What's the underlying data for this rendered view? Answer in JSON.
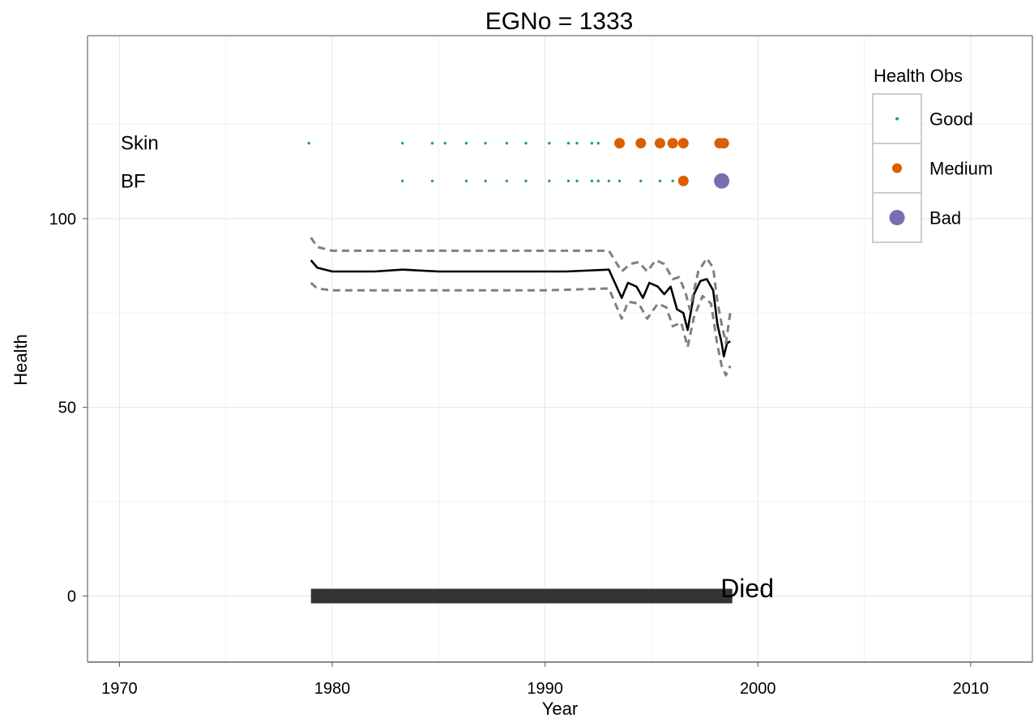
{
  "chart_data": {
    "type": "line",
    "title": "EGNo = 1333",
    "xlabel": "Year",
    "ylabel": "Health",
    "xlim": [
      1968.5,
      2012.9
    ],
    "ylim": [
      -17.5,
      148.5
    ],
    "x_ticks": [
      1970,
      1980,
      1990,
      2000,
      2010
    ],
    "y_ticks": [
      0,
      50,
      100
    ],
    "grid": true,
    "legend": {
      "title": "Health Obs",
      "position": "top-right",
      "entries": [
        {
          "label": "Good",
          "color": "#1b9e77",
          "size": "small"
        },
        {
          "label": "Medium",
          "color": "#d95f02",
          "size": "medium"
        },
        {
          "label": "Bad",
          "color": "#7570b3",
          "size": "large"
        }
      ]
    },
    "row_labels": [
      {
        "label": "Skin",
        "y": 120
      },
      {
        "label": "BF",
        "y": 110
      }
    ],
    "observations": {
      "Skin": {
        "y": 120,
        "good": [
          1978.9,
          1983.3,
          1984.7,
          1985.3,
          1986.3,
          1987.2,
          1988.2,
          1989.1,
          1990.2,
          1991.1,
          1991.5,
          1992.2,
          1992.5
        ],
        "medium": [
          1993.5,
          1994.5,
          1995.4,
          1996.0,
          1996.5,
          1998.2,
          1998.4
        ],
        "bad": []
      },
      "BF": {
        "y": 110,
        "good": [
          1983.3,
          1984.7,
          1986.3,
          1987.2,
          1988.2,
          1989.1,
          1990.2,
          1991.1,
          1991.5,
          1992.2,
          1992.5,
          1993.0,
          1993.5,
          1994.5,
          1995.4,
          1996.0
        ],
        "medium": [
          1996.5
        ],
        "bad": [
          1998.3
        ]
      }
    },
    "series": [
      {
        "style": "solid",
        "color": "#000000",
        "x": [
          1979.0,
          1979.3,
          1980.0,
          1982.0,
          1983.3,
          1985.0,
          1988.0,
          1991.0,
          1993.0,
          1993.6,
          1993.9,
          1994.3,
          1994.6,
          1994.9,
          1995.3,
          1995.6,
          1995.9,
          1996.2,
          1996.5,
          1996.7,
          1997.0,
          1997.3,
          1997.6,
          1997.9,
          1998.1,
          1998.3,
          1998.4,
          1998.55,
          1998.7
        ],
        "y": [
          89,
          87,
          86,
          86,
          86.5,
          86,
          86,
          86,
          86.5,
          79,
          83,
          82,
          79,
          83,
          82,
          80,
          82,
          76,
          75,
          70.5,
          80,
          83.5,
          84,
          81,
          72,
          67,
          63.5,
          67,
          67.5
        ]
      },
      {
        "style": "dashed",
        "color": "#808080",
        "x": [
          1979.0,
          1979.3,
          1980.0,
          1983.0,
          1986.0,
          1990.0,
          1993.0,
          1993.6,
          1994.0,
          1994.4,
          1994.8,
          1995.2,
          1995.6,
          1996.0,
          1996.3,
          1996.6,
          1996.8,
          1997.2,
          1997.6,
          1997.9,
          1998.1,
          1998.3,
          1998.5,
          1998.7
        ],
        "y": [
          95,
          92.5,
          91.5,
          91.5,
          91.5,
          91.5,
          91.5,
          86,
          88,
          88.5,
          86,
          89,
          88,
          84,
          84.5,
          80.5,
          76,
          86,
          89.5,
          87,
          78,
          72,
          67,
          75
        ]
      },
      {
        "style": "dashed",
        "color": "#808080",
        "x": [
          1979.0,
          1979.3,
          1980.0,
          1983.0,
          1986.0,
          1990.0,
          1993.0,
          1993.6,
          1993.9,
          1994.4,
          1994.8,
          1995.3,
          1995.7,
          1996.0,
          1996.4,
          1996.7,
          1997.0,
          1997.4,
          1997.8,
          1998.1,
          1998.3,
          1998.5,
          1998.7
        ],
        "y": [
          83,
          81.5,
          81,
          81,
          81,
          81,
          81.5,
          73.5,
          78,
          77.5,
          73.5,
          77.5,
          76.5,
          71.5,
          72.5,
          66,
          74,
          79.5,
          77.5,
          66.5,
          61,
          58.5,
          61
        ]
      }
    ],
    "lifespan_bar": {
      "x_start": 1979.0,
      "x_end": 1998.8,
      "y": 0,
      "color": "#333333"
    },
    "annotation": {
      "text": "Died",
      "x": 1999.5,
      "y": 1
    }
  }
}
